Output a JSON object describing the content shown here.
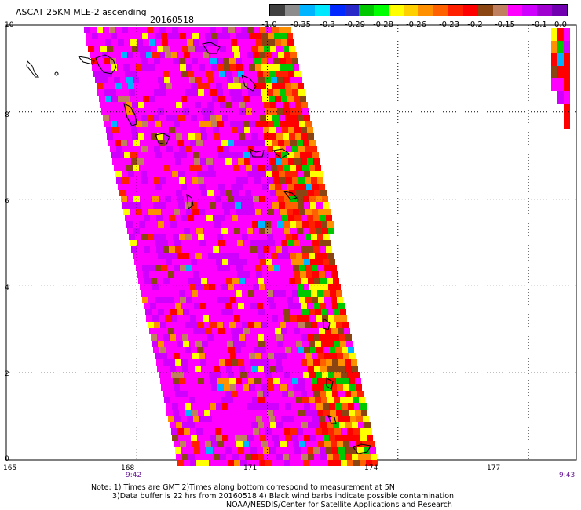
{
  "header": {
    "title": "ASCAT 25KM MLE-2 ascending",
    "date": "20160518"
  },
  "legend": {
    "colors": [
      "#404040",
      "#8c8c8c",
      "#00b4ff",
      "#00e8ff",
      "#0028ff",
      "#2828c8",
      "#00c800",
      "#00ff00",
      "#ffff00",
      "#ffd000",
      "#ff9000",
      "#ff6000",
      "#ff2000",
      "#ff0000",
      "#8b4513",
      "#c08060",
      "#ff00ff",
      "#d000ff",
      "#a000d0",
      "#7000b0"
    ],
    "labels": [
      "-1.0",
      "-0.35",
      "-0.3",
      "-0.29",
      "-0.28",
      "-0.26",
      "-0.23",
      "-0.2",
      "-0.15",
      "-0.1",
      "0.0"
    ]
  },
  "axes": {
    "x_ticks": [
      "165",
      "168",
      "171",
      "174",
      "177"
    ],
    "y_ticks": [
      "0",
      "2",
      "4",
      "6",
      "8",
      "10"
    ],
    "times": [
      "9:42",
      "9:43"
    ]
  },
  "notes": [
    "Note: 1) Times are GMT 2)Times along bottom correspond to measurement at 5N",
    "3)Data buffer is 22 hrs from 20160518 4) Black wind barbs indicate possible contamination",
    "NOAA/NESDIS/Center for Satellite Applications and Research"
  ]
}
